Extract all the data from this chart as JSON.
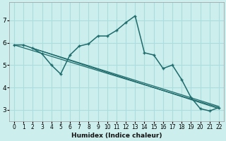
{
  "xlabel": "Humidex (Indice chaleur)",
  "background_color": "#cceeed",
  "grid_color": "#aadddc",
  "line_color": "#1e6b6b",
  "xlim": [
    -0.5,
    22.5
  ],
  "ylim": [
    2.5,
    7.8
  ],
  "xticks": [
    0,
    1,
    2,
    3,
    4,
    5,
    6,
    7,
    8,
    9,
    10,
    11,
    12,
    13,
    14,
    15,
    16,
    17,
    18,
    19,
    20,
    21,
    22
  ],
  "yticks": [
    3,
    4,
    5,
    6,
    7
  ],
  "line1_x": [
    0,
    1,
    2,
    3,
    4,
    5,
    6,
    7,
    8,
    9,
    10,
    11,
    12,
    13,
    14,
    15,
    16,
    17,
    18,
    19,
    20,
    21,
    22
  ],
  "line1_y": [
    5.9,
    5.9,
    5.75,
    5.5,
    5.0,
    4.6,
    5.45,
    5.85,
    5.95,
    6.3,
    6.3,
    6.55,
    6.9,
    7.2,
    5.55,
    5.45,
    4.85,
    5.0,
    4.35,
    3.55,
    3.05,
    2.95,
    3.1
  ],
  "line2_x": [
    0,
    22
  ],
  "line2_y": [
    5.9,
    3.1
  ],
  "line3_x": [
    2,
    22
  ],
  "line3_y": [
    5.75,
    3.05
  ],
  "line4_x": [
    2,
    22
  ],
  "line4_y": [
    5.75,
    3.15
  ]
}
